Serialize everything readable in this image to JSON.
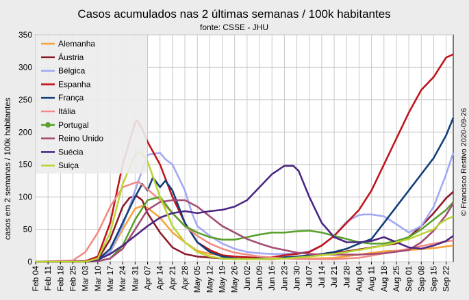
{
  "chart_data": {
    "type": "line",
    "title": "Casos acumulados nas 2 últimas semanas / 100k habitantes",
    "subtitle": "fonte: CSSE - JHU",
    "ylabel": "casos em 2 semanas / 100k habitantes",
    "credit": "© Francisco Restivo 2020-09-26",
    "xlabel": "",
    "ylim": [
      0,
      350
    ],
    "yticks": [
      0,
      50,
      100,
      150,
      200,
      250,
      300,
      350
    ],
    "x_start": "Feb 04",
    "x_end": "Sep 26",
    "x_tick_labels": [
      "Feb 04",
      "Feb 11",
      "Feb 18",
      "Feb 25",
      "Mar 03",
      "Mar 10",
      "Mar 17",
      "Mar 24",
      "Mar 31",
      "Apr 07",
      "Apr 14",
      "Apr 21",
      "Apr 28",
      "May 05",
      "May 12",
      "May 19",
      "May 26",
      "Jun 02",
      "Jun 09",
      "Jun 16",
      "Jun 23",
      "Jun 30",
      "Jul 07",
      "Jul 14",
      "Jul 21",
      "Jul 28",
      "Aug 04",
      "Aug 11",
      "Aug 18",
      "Aug 25",
      "Sep 01",
      "Sep 08",
      "Sep 15",
      "Sep 22"
    ],
    "grid": true,
    "legend_position": "top-left",
    "series": [
      {
        "name": "Alemanha",
        "color": "#f7a23c",
        "dates": [
          "Feb 04",
          "Mar 03",
          "Mar 10",
          "Mar 17",
          "Mar 24",
          "Mar 31",
          "Apr 04",
          "Apr 07",
          "Apr 14",
          "Apr 21",
          "Apr 28",
          "May 05",
          "May 12",
          "May 19",
          "May 26",
          "Jun 09",
          "Jun 23",
          "Jul 07",
          "Jul 21",
          "Aug 04",
          "Aug 18",
          "Sep 01",
          "Sep 15",
          "Sep 26"
        ],
        "values": [
          0,
          0,
          2,
          15,
          50,
          82,
          86,
          83,
          68,
          45,
          30,
          17,
          12,
          10,
          8,
          6,
          7,
          5,
          6,
          11,
          16,
          18,
          21,
          25
        ]
      },
      {
        "name": "Áustria",
        "color": "#8b1a2b",
        "dates": [
          "Feb 04",
          "Mar 03",
          "Mar 10",
          "Mar 17",
          "Mar 24",
          "Mar 28",
          "Apr 01",
          "Apr 04",
          "Apr 07",
          "Apr 14",
          "Apr 21",
          "Apr 28",
          "May 05",
          "May 19",
          "Jun 02",
          "Jun 16",
          "Jun 30",
          "Jul 14",
          "Jul 28",
          "Aug 11",
          "Aug 25",
          "Sep 01",
          "Sep 08",
          "Sep 15",
          "Sep 22",
          "Sep 26"
        ],
        "values": [
          0,
          0,
          3,
          35,
          85,
          99,
          101,
          95,
          75,
          45,
          22,
          12,
          8,
          5,
          4,
          4,
          7,
          11,
          16,
          22,
          28,
          38,
          55,
          75,
          98,
          108
        ]
      },
      {
        "name": "Bélgica",
        "color": "#a3a8f4",
        "dates": [
          "Feb 04",
          "Mar 03",
          "Mar 10",
          "Mar 17",
          "Mar 24",
          "Mar 31",
          "Apr 07",
          "Apr 14",
          "Apr 17",
          "Apr 21",
          "Apr 28",
          "May 02",
          "May 05",
          "May 12",
          "May 19",
          "May 26",
          "Jun 02",
          "Jun 09",
          "Jun 16",
          "Jun 23",
          "Jun 30",
          "Jul 07",
          "Jul 14",
          "Jul 21",
          "Jul 28",
          "Aug 04",
          "Aug 07",
          "Aug 11",
          "Aug 18",
          "Aug 25",
          "Sep 01",
          "Sep 08",
          "Sep 15",
          "Sep 22",
          "Sep 26"
        ],
        "values": [
          0,
          0,
          2,
          15,
          55,
          110,
          165,
          168,
          158,
          150,
          110,
          75,
          55,
          40,
          28,
          20,
          15,
          13,
          12,
          12,
          13,
          16,
          25,
          40,
          62,
          72,
          73,
          73,
          70,
          58,
          45,
          55,
          85,
          135,
          168
        ]
      },
      {
        "name": "Espanha",
        "color": "#c0141c",
        "dates": [
          "Feb 04",
          "Mar 03",
          "Mar 10",
          "Mar 17",
          "Mar 24",
          "Mar 31",
          "Apr 01",
          "Apr 04",
          "Apr 07",
          "Apr 14",
          "Apr 21",
          "Apr 28",
          "May 05",
          "May 12",
          "May 19",
          "May 26",
          "Jun 02",
          "Jun 09",
          "Jun 16",
          "Jun 23",
          "Jun 30",
          "Jul 07",
          "Jul 14",
          "Jul 21",
          "Jul 28",
          "Aug 04",
          "Aug 11",
          "Aug 18",
          "Aug 25",
          "Sep 01",
          "Sep 08",
          "Sep 15",
          "Sep 22",
          "Sep 26"
        ],
        "values": [
          0,
          1,
          8,
          60,
          150,
          215,
          218,
          205,
          185,
          150,
          100,
          60,
          30,
          18,
          10,
          8,
          7,
          6,
          7,
          10,
          12,
          15,
          25,
          40,
          60,
          80,
          110,
          150,
          190,
          230,
          265,
          285,
          315,
          320
        ]
      },
      {
        "name": "França",
        "color": "#123f79",
        "dates": [
          "Feb 04",
          "Mar 03",
          "Mar 10",
          "Mar 17",
          "Mar 24",
          "Mar 31",
          "Apr 04",
          "Apr 07",
          "Apr 10",
          "Apr 14",
          "Apr 17",
          "Apr 21",
          "Apr 28",
          "May 05",
          "May 12",
          "May 19",
          "May 26",
          "Jun 02",
          "Jun 09",
          "Jun 16",
          "Jun 23",
          "Jun 30",
          "Jul 07",
          "Jul 14",
          "Jul 21",
          "Jul 28",
          "Aug 04",
          "Aug 11",
          "Aug 18",
          "Aug 25",
          "Sep 01",
          "Sep 08",
          "Sep 15",
          "Sep 22",
          "Sep 26"
        ],
        "values": [
          0,
          0,
          3,
          20,
          60,
          100,
          120,
          110,
          130,
          115,
          125,
          110,
          60,
          30,
          15,
          8,
          5,
          4,
          5,
          5,
          7,
          8,
          10,
          12,
          15,
          20,
          28,
          35,
          60,
          85,
          110,
          135,
          160,
          195,
          222
        ]
      },
      {
        "name": "Itália",
        "color": "#f28b86",
        "dates": [
          "Feb 04",
          "Feb 25",
          "Mar 03",
          "Mar 10",
          "Mar 17",
          "Mar 24",
          "Mar 31",
          "Apr 02",
          "Apr 07",
          "Apr 14",
          "Apr 21",
          "Apr 28",
          "May 05",
          "May 12",
          "May 19",
          "May 26",
          "Jun 09",
          "Jun 23",
          "Jul 07",
          "Jul 21",
          "Aug 04",
          "Aug 18",
          "Sep 01",
          "Sep 15",
          "Sep 26"
        ],
        "values": [
          0,
          2,
          15,
          45,
          85,
          115,
          122,
          123,
          112,
          95,
          75,
          55,
          40,
          28,
          20,
          14,
          8,
          5,
          4,
          4,
          6,
          13,
          20,
          28,
          33
        ]
      },
      {
        "name": "Portugal",
        "color": "#5aa02c",
        "marker": "circle",
        "dates": [
          "Feb 04",
          "Mar 03",
          "Mar 10",
          "Mar 17",
          "Mar 24",
          "Mar 31",
          "Apr 07",
          "Apr 14",
          "Apr 21",
          "Apr 28",
          "May 05",
          "May 12",
          "May 19",
          "May 26",
          "Jun 02",
          "Jun 09",
          "Jun 16",
          "Jun 23",
          "Jun 30",
          "Jul 07",
          "Jul 14",
          "Jul 21",
          "Jul 28",
          "Aug 04",
          "Aug 11",
          "Aug 18",
          "Aug 25",
          "Sep 01",
          "Sep 08",
          "Sep 15",
          "Sep 22",
          "Sep 26"
        ],
        "values": [
          0,
          0,
          1,
          5,
          25,
          65,
          95,
          100,
          75,
          55,
          45,
          38,
          34,
          34,
          38,
          42,
          45,
          45,
          47,
          48,
          45,
          40,
          35,
          30,
          28,
          28,
          32,
          38,
          50,
          65,
          80,
          92
        ]
      },
      {
        "name": "Reino Unido",
        "color": "#a34d75",
        "dates": [
          "Feb 04",
          "Mar 03",
          "Mar 10",
          "Mar 17",
          "Mar 24",
          "Mar 31",
          "Apr 07",
          "Apr 14",
          "Apr 21",
          "Apr 28",
          "May 05",
          "May 12",
          "May 19",
          "May 26",
          "Jun 02",
          "Jun 09",
          "Jun 16",
          "Jun 23",
          "Jun 30",
          "Jul 07",
          "Jul 14",
          "Jul 21",
          "Jul 28",
          "Aug 04",
          "Aug 18",
          "Sep 01",
          "Sep 08",
          "Sep 15",
          "Sep 22",
          "Sep 26"
        ],
        "values": [
          0,
          0,
          1,
          5,
          20,
          50,
          80,
          92,
          95,
          95,
          85,
          70,
          55,
          45,
          35,
          28,
          22,
          18,
          14,
          12,
          11,
          11,
          11,
          11,
          13,
          18,
          30,
          48,
          72,
          90
        ]
      },
      {
        "name": "Suécia",
        "color": "#4b2683",
        "dates": [
          "Feb 04",
          "Mar 03",
          "Mar 10",
          "Mar 17",
          "Mar 24",
          "Mar 31",
          "Apr 07",
          "Apr 14",
          "Apr 21",
          "Apr 28",
          "May 05",
          "May 12",
          "May 19",
          "May 26",
          "Jun 02",
          "Jun 09",
          "Jun 16",
          "Jun 23",
          "Jun 28",
          "Jul 01",
          "Jul 07",
          "Jul 14",
          "Jul 21",
          "Jul 28",
          "Aug 04",
          "Aug 11",
          "Aug 18",
          "Aug 25",
          "Sep 01",
          "Sep 08",
          "Sep 15",
          "Sep 22",
          "Sep 26"
        ],
        "values": [
          0,
          0,
          3,
          12,
          25,
          40,
          55,
          68,
          75,
          78,
          75,
          78,
          80,
          85,
          95,
          115,
          135,
          148,
          148,
          140,
          100,
          60,
          38,
          30,
          30,
          32,
          38,
          30,
          22,
          20,
          25,
          32,
          40
        ]
      },
      {
        "name": "Suiça",
        "color": "#b9d531",
        "dates": [
          "Feb 04",
          "Mar 03",
          "Mar 10",
          "Mar 17",
          "Mar 24",
          "Mar 31",
          "Apr 03",
          "Apr 07",
          "Apr 14",
          "Apr 21",
          "Apr 28",
          "May 05",
          "May 12",
          "May 19",
          "May 26",
          "Jun 09",
          "Jun 23",
          "Jul 07",
          "Jul 21",
          "Aug 04",
          "Aug 18",
          "Sep 01",
          "Sep 15",
          "Sep 19",
          "Sep 22",
          "Sep 26"
        ],
        "values": [
          0,
          0,
          5,
          45,
          120,
          165,
          170,
          155,
          100,
          55,
          30,
          15,
          8,
          5,
          4,
          4,
          5,
          8,
          12,
          18,
          25,
          35,
          50,
          60,
          65,
          70
        ]
      }
    ]
  }
}
